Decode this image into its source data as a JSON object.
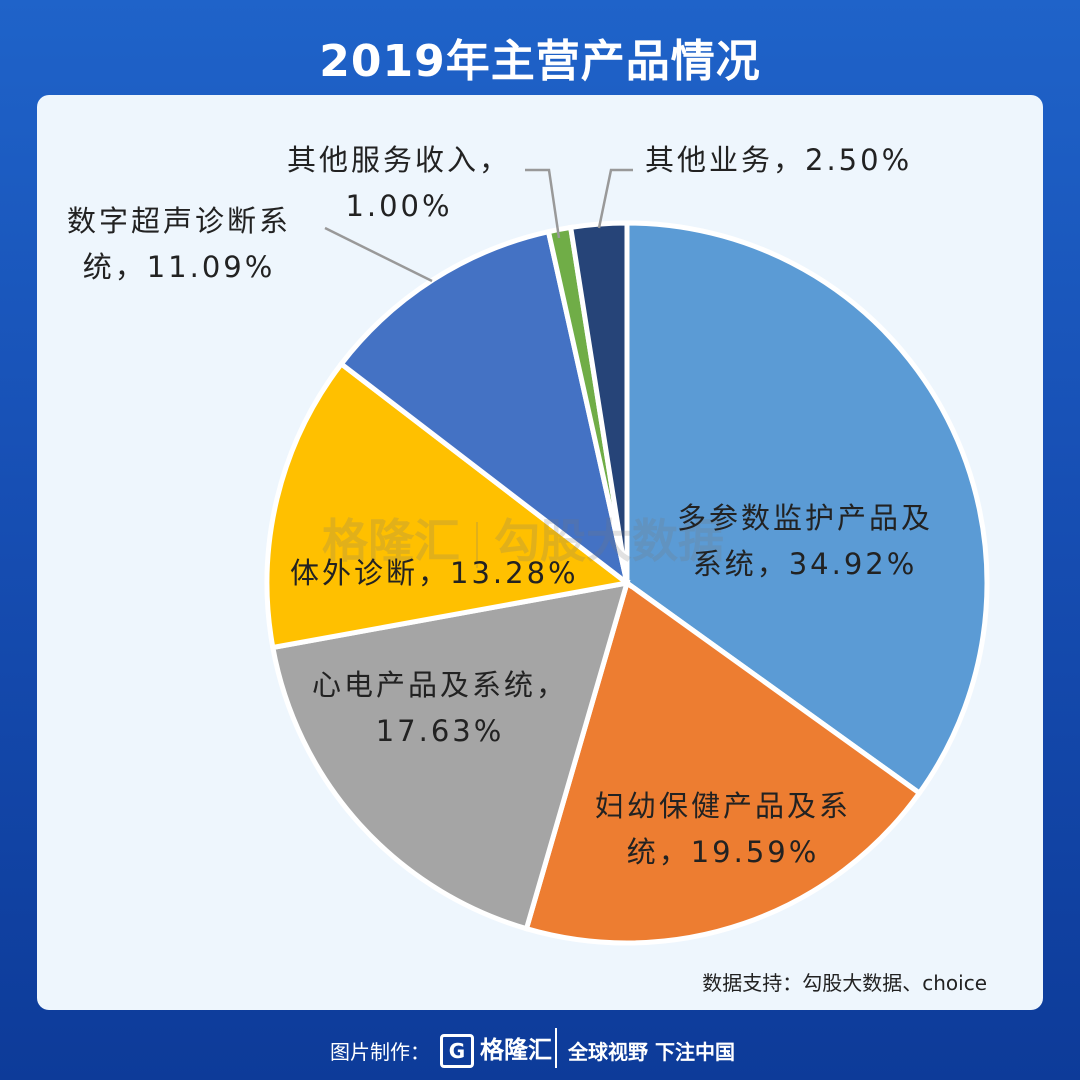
{
  "chart_data": {
    "type": "pie",
    "title": "2019年主营产品情况",
    "slices": [
      {
        "label_lines": [
          "多参数监护产品及",
          "系统，34.92%"
        ],
        "value": 34.92,
        "color": "#5b9bd5"
      },
      {
        "label_lines": [
          "妇幼保健产品及系",
          "统，19.59%"
        ],
        "value": 19.59,
        "color": "#ed7d31"
      },
      {
        "label_lines": [
          "心电产品及系统，",
          "17.63%"
        ],
        "value": 17.63,
        "color": "#a5a5a5"
      },
      {
        "label_lines": [
          "体外诊断，13.28%"
        ],
        "value": 13.28,
        "color": "#ffc000"
      },
      {
        "label_lines": [
          "数字超声诊断系",
          "统，11.09%"
        ],
        "value": 11.09,
        "color": "#4472c4"
      },
      {
        "label_lines": [
          "其他服务收入，",
          "1.00%"
        ],
        "value": 1.0,
        "color": "#70ad47"
      },
      {
        "label_lines": [
          "其他业务，2.50%"
        ],
        "value": 2.5,
        "color": "#264478"
      }
    ]
  },
  "source_text": "数据支持：勾股大数据、choice",
  "watermark": {
    "brand": "格隆汇",
    "text": "勾股大数据"
  },
  "footer": {
    "credit": "图片制作：",
    "logo_letter": "G",
    "logo": "格隆汇",
    "slogan": "全球视野 下注中国"
  }
}
